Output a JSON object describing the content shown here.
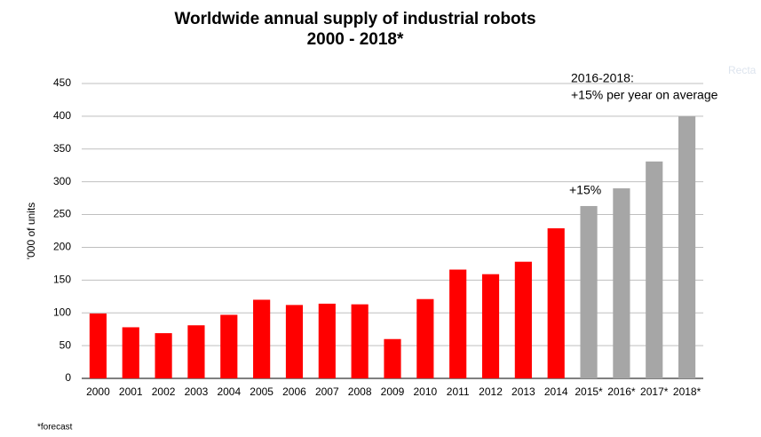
{
  "chart_data": {
    "type": "bar",
    "title": "Worldwide annual supply of industrial robots",
    "subtitle": "2000 - 2018*",
    "y_label": "'000 of units",
    "categories": [
      "2000",
      "2001",
      "2002",
      "2003",
      "2004",
      "2005",
      "2006",
      "2007",
      "2008",
      "2009",
      "2010",
      "2011",
      "2012",
      "2013",
      "2014",
      "2015*",
      "2016*",
      "2017*",
      "2018*"
    ],
    "values": [
      99,
      78,
      69,
      81,
      97,
      120,
      112,
      114,
      113,
      60,
      121,
      166,
      159,
      178,
      229,
      263,
      290,
      331,
      400
    ],
    "colors": [
      "#ff0000",
      "#ff0000",
      "#ff0000",
      "#ff0000",
      "#ff0000",
      "#ff0000",
      "#ff0000",
      "#ff0000",
      "#ff0000",
      "#ff0000",
      "#ff0000",
      "#ff0000",
      "#ff0000",
      "#ff0000",
      "#ff0000",
      "#a6a6a6",
      "#a6a6a6",
      "#a6a6a6",
      "#a6a6a6"
    ],
    "ylim": [
      0,
      450
    ],
    "yticks": [
      0,
      50,
      100,
      150,
      200,
      250,
      300,
      350,
      400,
      450
    ],
    "grid": true,
    "annotations": [
      "2016-2018:",
      "+15% per year on average",
      "+15%"
    ],
    "footnote": "*forecast",
    "ghost_label": "Recta"
  }
}
